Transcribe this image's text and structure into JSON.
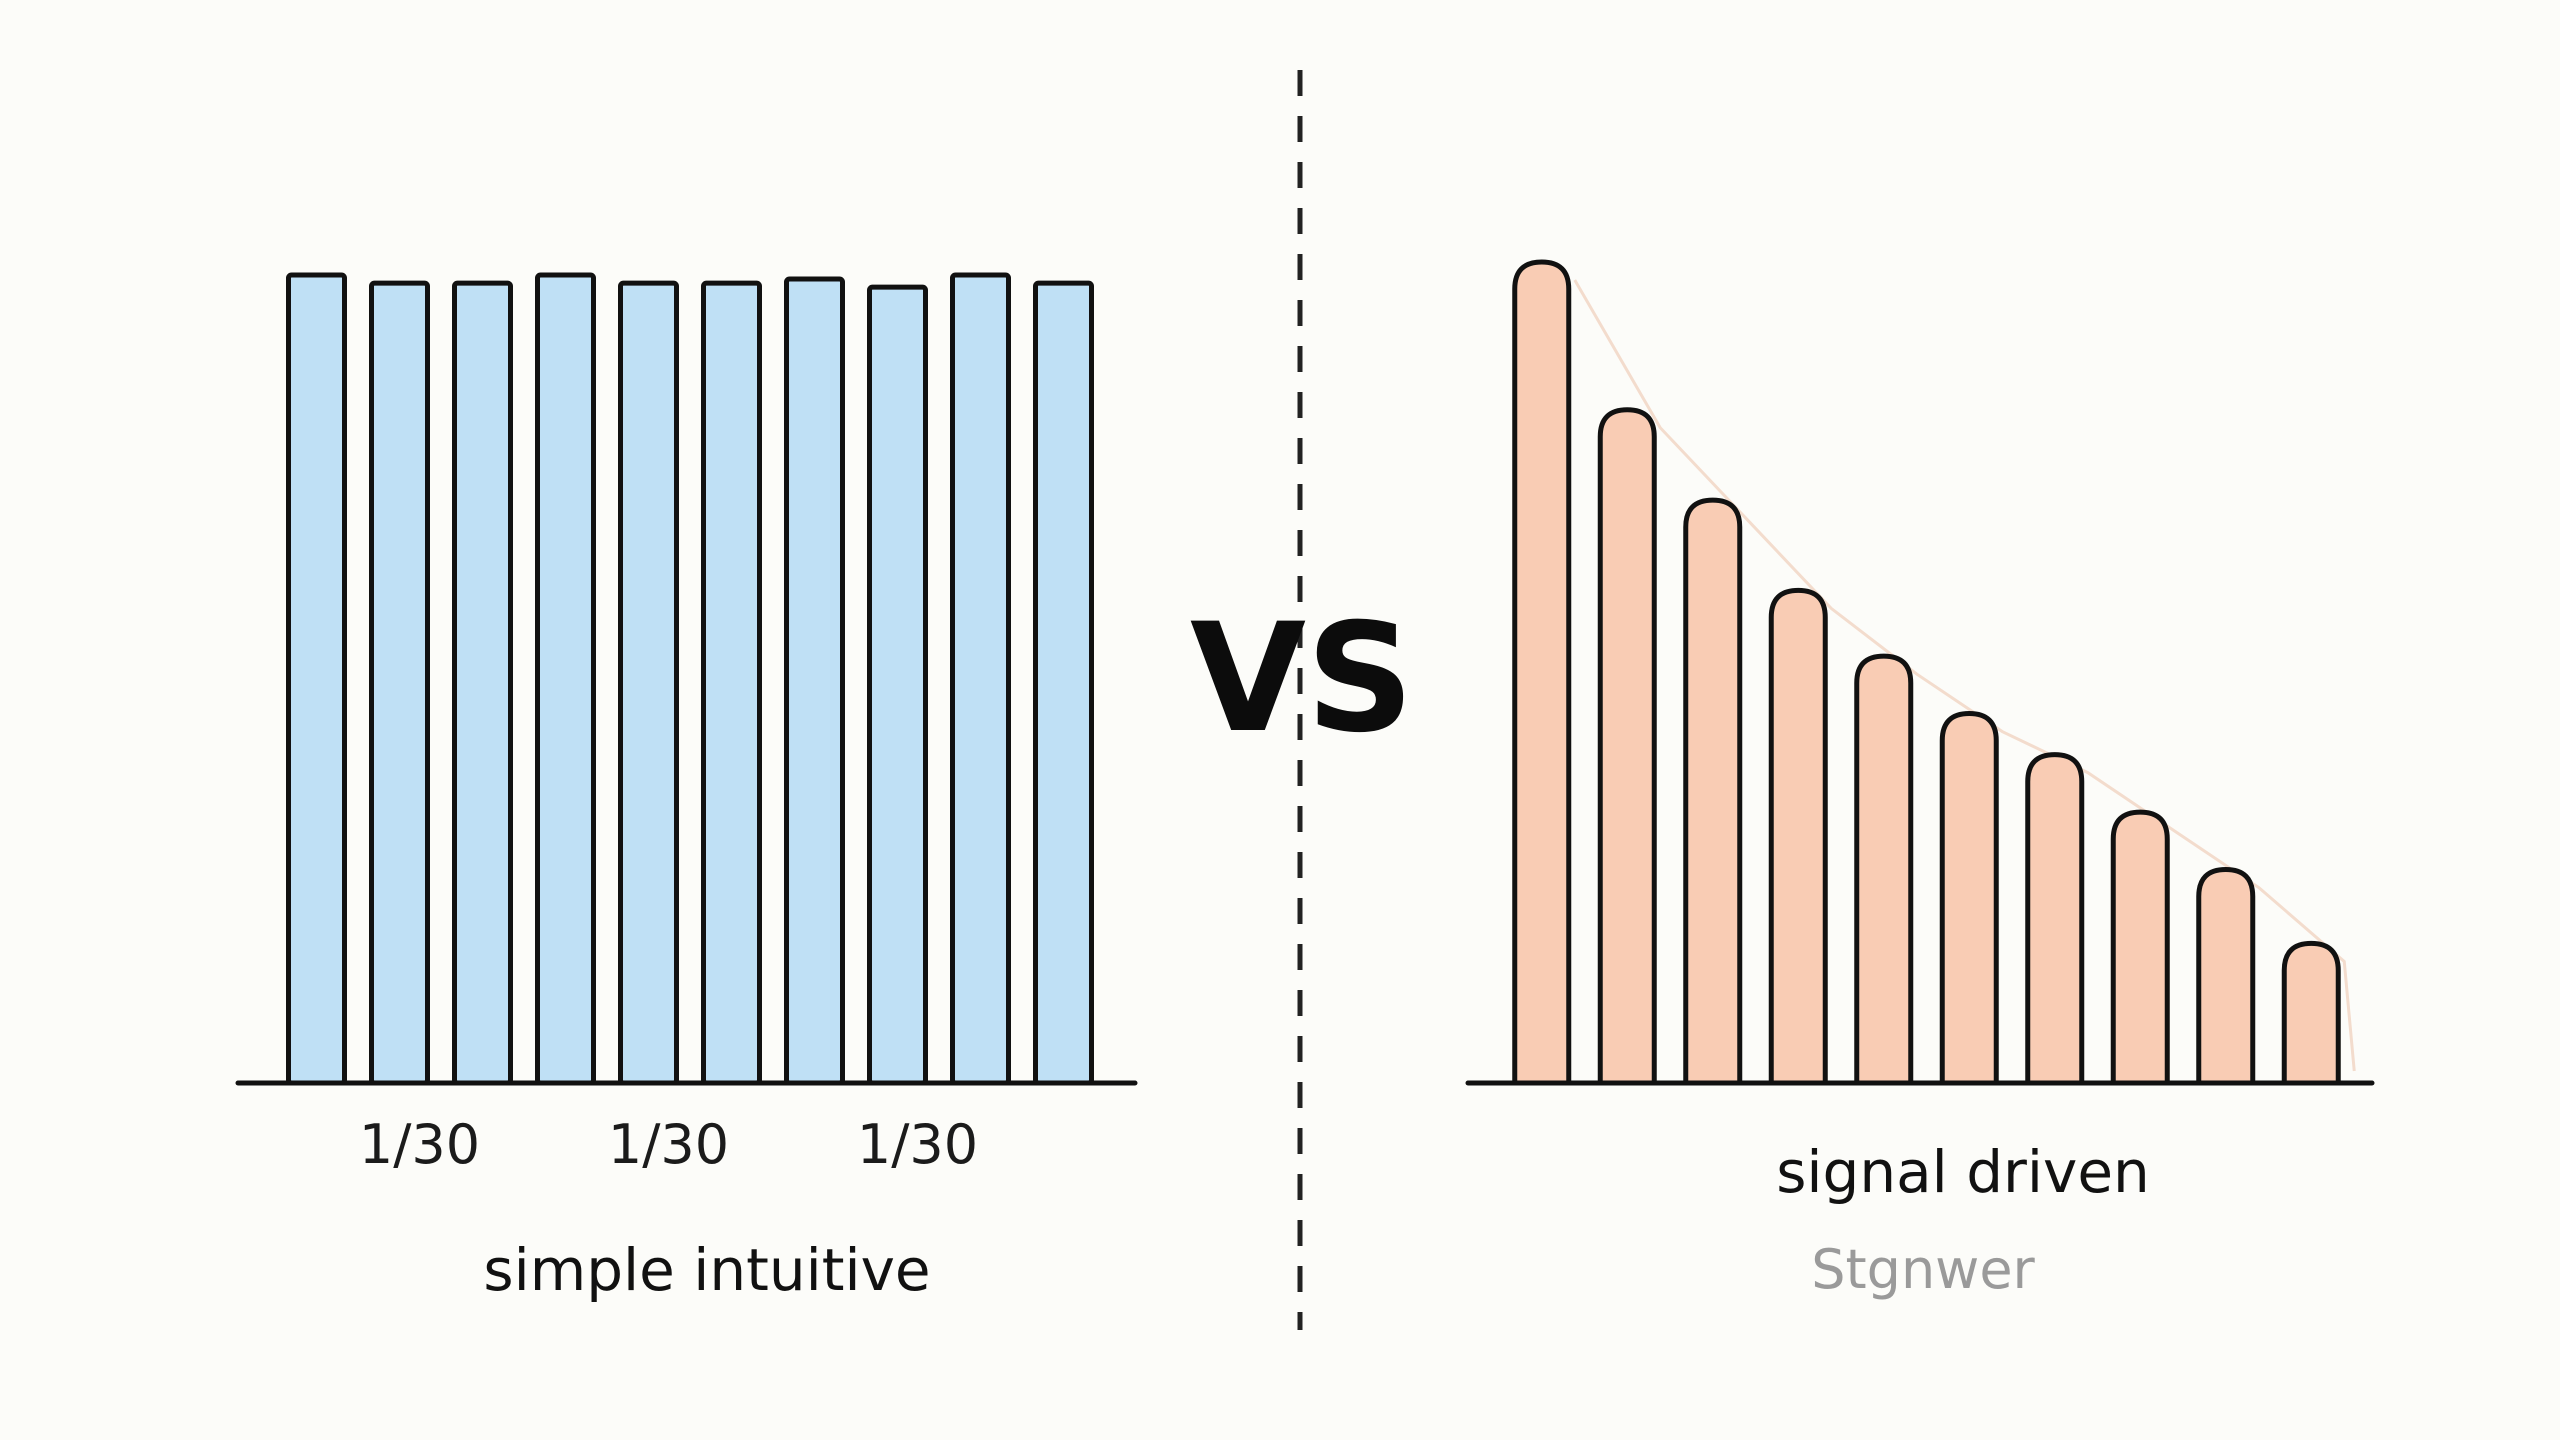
{
  "vs_label": "VS",
  "colors": {
    "left_fill": "#bfe0f5",
    "right_fill": "#f9ccb4",
    "outline": "#111111",
    "divider": "#222222",
    "trend_line": "#f3dccd"
  },
  "chart_data": [
    {
      "type": "bar",
      "bar_style": "square",
      "values": [
        1.0,
        0.99,
        0.99,
        1.0,
        0.99,
        0.99,
        0.995,
        0.985,
        1.0,
        0.99
      ],
      "ylim": [
        0,
        1.05
      ],
      "tick_labels": [
        "1/30",
        "1/30",
        "1/30"
      ],
      "caption": "simple intuitive",
      "sub_caption": ""
    },
    {
      "type": "bar",
      "bar_style": "rounded",
      "values": [
        1.0,
        0.82,
        0.71,
        0.6,
        0.52,
        0.45,
        0.4,
        0.33,
        0.26,
        0.17
      ],
      "ylim": [
        0,
        1.05
      ],
      "tick_labels": [],
      "caption": "signal driven",
      "sub_caption": "Stgnwer"
    }
  ]
}
